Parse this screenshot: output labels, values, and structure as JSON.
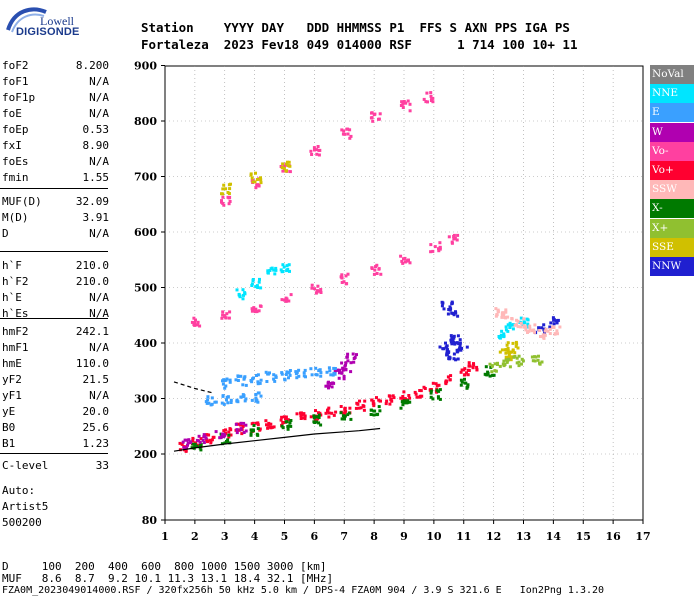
{
  "logo": {
    "brand": "Lowell",
    "product": "DIGISONDE"
  },
  "header": {
    "line1": "Station    YYYY DAY   DDD HHMMSS P1  FFS S AXN PPS IGA PS",
    "line2": "Fortaleza  2023 Fev18 049 014000 RSF      1 714 100 10+ 11"
  },
  "params_group1": [
    {
      "key": "foF2",
      "value": "8.200"
    },
    {
      "key": "foF1",
      "value": "N/A"
    },
    {
      "key": "foF1p",
      "value": "N/A"
    },
    {
      "key": "foE",
      "value": "N/A"
    },
    {
      "key": "foEp",
      "value": "0.53"
    },
    {
      "key": "fxI",
      "value": "8.90"
    },
    {
      "key": "foEs",
      "value": "N/A"
    },
    {
      "key": "fmin",
      "value": "1.55"
    }
  ],
  "params_group2": [
    {
      "key": "MUF(D)",
      "value": "32.09"
    },
    {
      "key": "M(D)",
      "value": "3.91"
    },
    {
      "key": "D",
      "value": "N/A"
    }
  ],
  "params_group3": [
    {
      "key": "h`F",
      "value": "210.0"
    },
    {
      "key": "h`F2",
      "value": "210.0"
    },
    {
      "key": "h`E",
      "value": "N/A"
    },
    {
      "key": "h`Es",
      "value": "N/A"
    }
  ],
  "params_group4": [
    {
      "key": "hmF2",
      "value": "242.1"
    },
    {
      "key": "hmF1",
      "value": "N/A"
    },
    {
      "key": "hmE",
      "value": "110.0"
    },
    {
      "key": "yF2",
      "value": "21.5"
    },
    {
      "key": "yF1",
      "value": "N/A"
    },
    {
      "key": "yE",
      "value": "20.0"
    },
    {
      "key": "B0",
      "value": "25.6"
    },
    {
      "key": "B1",
      "value": "1.23"
    }
  ],
  "params_group5": [
    {
      "key": "C-level",
      "value": "33"
    }
  ],
  "auto_info": {
    "line1": "Auto:",
    "line2": "Artist5",
    "line3": "500200"
  },
  "legend": [
    {
      "label": "NoVal",
      "color": "#808080"
    },
    {
      "label": "NNE",
      "color": "#00e5ff"
    },
    {
      "label": "E",
      "color": "#3aa0ff"
    },
    {
      "label": "W",
      "color": "#b000b0"
    },
    {
      "label": "Vo-",
      "color": "#ff40a0"
    },
    {
      "label": "Vo+",
      "color": "#ff0030"
    },
    {
      "label": "SSW",
      "color": "#ffb8b8"
    },
    {
      "label": "X-",
      "color": "#007a00"
    },
    {
      "label": "X+",
      "color": "#90c030"
    },
    {
      "label": "SSE",
      "color": "#d0c000"
    },
    {
      "label": "NNW",
      "color": "#2020d0"
    }
  ],
  "bottom_table": {
    "d_row": "D     100  200  400  600  800 1000 1500 3000 [km]",
    "muf_row": "MUF   8.6  8.7  9.2 10.1 11.3 13.1 18.4 32.1 [MHz]"
  },
  "footer": "FZA0M_2023049014000.RSF / 320fx256h 50 kHz 5.0 km / DPS-4 FZA0M 904 / 3.9 S 321.6 E   Ion2Png 1.3.20",
  "chart_data": {
    "type": "scatter",
    "x_ticks": [
      "1",
      "2",
      "3",
      "4",
      "5",
      "6",
      "7",
      "8",
      "9",
      "10",
      "11",
      "12",
      "13",
      "14",
      "15",
      "16",
      "17"
    ],
    "y_ticks": [
      "900",
      "800",
      "700",
      "600",
      "500",
      "400",
      "300",
      "200",
      "80"
    ],
    "xlim": [
      1,
      17
    ],
    "ylim": [
      80,
      900
    ],
    "y_scale": "nonlinear (80 at bottom, 200-900 linear)",
    "grid": "dotted",
    "series": [
      {
        "name": "Vo+",
        "color_key": 5,
        "points": [
          [
            1.6,
            215
          ],
          [
            2.0,
            222
          ],
          [
            2.5,
            230
          ],
          [
            3.0,
            240
          ],
          [
            3.5,
            248
          ],
          [
            4.0,
            252
          ],
          [
            4.5,
            258
          ],
          [
            5.0,
            262
          ],
          [
            5.5,
            268
          ],
          [
            6.0,
            272
          ],
          [
            6.5,
            278
          ],
          [
            7.0,
            284
          ],
          [
            7.5,
            290
          ],
          [
            8.0,
            296
          ],
          [
            8.5,
            300
          ],
          [
            9.0,
            306
          ],
          [
            9.5,
            314
          ],
          [
            10.0,
            322
          ],
          [
            10.5,
            336
          ],
          [
            11.0,
            350
          ],
          [
            11.3,
            362
          ]
        ]
      },
      {
        "name": "X-",
        "color_key": 7,
        "points": [
          [
            2.0,
            215
          ],
          [
            3.0,
            230
          ],
          [
            4.0,
            245
          ],
          [
            5.0,
            256
          ],
          [
            6.0,
            264
          ],
          [
            7.0,
            272
          ],
          [
            8.0,
            280
          ],
          [
            9.0,
            292
          ],
          [
            10.0,
            310
          ],
          [
            11.0,
            330
          ],
          [
            11.8,
            352
          ]
        ]
      },
      {
        "name": "W",
        "color_key": 3,
        "points": [
          [
            1.7,
            220
          ],
          [
            2.2,
            230
          ],
          [
            2.8,
            238
          ],
          [
            3.5,
            250
          ],
          [
            6.5,
            330
          ],
          [
            6.8,
            345
          ],
          [
            7.0,
            360
          ],
          [
            7.2,
            375
          ]
        ]
      },
      {
        "name": "E",
        "color_key": 2,
        "points": [
          [
            3.0,
            330
          ],
          [
            3.5,
            335
          ],
          [
            4.0,
            338
          ],
          [
            4.5,
            342
          ],
          [
            5.0,
            345
          ],
          [
            5.5,
            348
          ],
          [
            6.0,
            350
          ],
          [
            6.5,
            352
          ],
          [
            2.5,
            300
          ],
          [
            3.0,
            300
          ],
          [
            3.5,
            305
          ],
          [
            4.0,
            305
          ]
        ]
      },
      {
        "name": "NNW",
        "color_key": 10,
        "points": [
          [
            10.3,
            390
          ],
          [
            10.5,
            400
          ],
          [
            10.7,
            410
          ],
          [
            10.9,
            395
          ],
          [
            10.6,
            380
          ],
          [
            10.4,
            470
          ],
          [
            10.6,
            460
          ],
          [
            14.0,
            440
          ],
          [
            13.5,
            430
          ]
        ]
      },
      {
        "name": "Vo-",
        "color_key": 4,
        "points": [
          [
            2.0,
            440
          ],
          [
            3.0,
            450
          ],
          [
            4.0,
            466
          ],
          [
            5.0,
            482
          ],
          [
            6.0,
            500
          ],
          [
            7.0,
            518
          ],
          [
            8.0,
            535
          ],
          [
            9.0,
            555
          ],
          [
            10.0,
            575
          ],
          [
            10.6,
            590
          ],
          [
            3.0,
            660
          ],
          [
            4.0,
            690
          ],
          [
            5.0,
            720
          ],
          [
            6.0,
            750
          ],
          [
            7.0,
            780
          ],
          [
            8.0,
            810
          ],
          [
            9.0,
            830
          ],
          [
            9.8,
            845
          ]
        ]
      },
      {
        "name": "NNE",
        "color_key": 1,
        "points": [
          [
            4.0,
            510
          ],
          [
            4.5,
            530
          ],
          [
            5.0,
            540
          ],
          [
            3.5,
            490
          ],
          [
            12.3,
            420
          ],
          [
            12.5,
            430
          ],
          [
            13.0,
            440
          ]
        ]
      },
      {
        "name": "SSW",
        "color_key": 6,
        "points": [
          [
            12.2,
            460
          ],
          [
            12.4,
            450
          ],
          [
            12.8,
            440
          ],
          [
            13.2,
            430
          ],
          [
            13.6,
            420
          ],
          [
            14.0,
            425
          ]
        ]
      },
      {
        "name": "SSE",
        "color_key": 9,
        "points": [
          [
            12.3,
            390
          ],
          [
            12.5,
            380
          ],
          [
            12.6,
            395
          ],
          [
            3.0,
            680
          ],
          [
            4.0,
            700
          ],
          [
            5.0,
            720
          ]
        ]
      },
      {
        "name": "X+",
        "color_key": 8,
        "points": [
          [
            12.0,
            360
          ],
          [
            12.4,
            365
          ],
          [
            12.8,
            370
          ],
          [
            13.4,
            370
          ]
        ]
      }
    ],
    "profile_line": [
      [
        1.3,
        205
      ],
      [
        2.0,
        211
      ],
      [
        3.0,
        218
      ],
      [
        4.0,
        224
      ],
      [
        5.0,
        230
      ],
      [
        6.0,
        236
      ],
      [
        7.0,
        240
      ],
      [
        7.5,
        242
      ],
      [
        8.2,
        246
      ]
    ],
    "profile_dash": [
      [
        1.3,
        330
      ],
      [
        2.0,
        318
      ],
      [
        2.6,
        310
      ]
    ]
  }
}
